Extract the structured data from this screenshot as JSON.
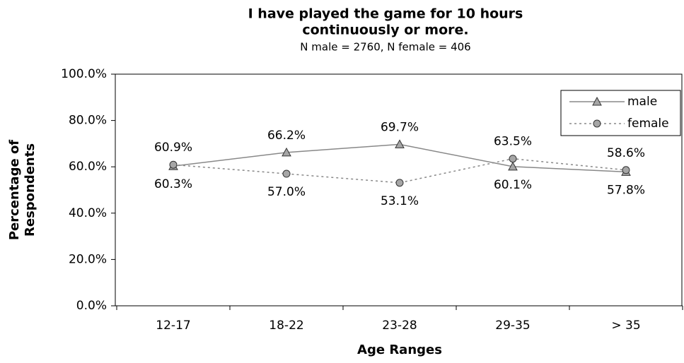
{
  "chart_data": {
    "type": "line",
    "title": [
      "I have played the game for 10 hours",
      "continuously or more."
    ],
    "subtitle": "N male = 2760, N female = 406",
    "xlabel": "Age Ranges",
    "ylabel": [
      "Percentage of",
      "Respondents"
    ],
    "categories": [
      "12-17",
      "18-22",
      "23-28",
      "29-35",
      "> 35"
    ],
    "series": [
      {
        "name": "male",
        "color": "#888888",
        "marker": "triangle",
        "dash": "solid",
        "values": [
          60.3,
          66.2,
          69.7,
          60.1,
          57.8
        ],
        "value_labels": [
          "60.3%",
          "66.2%",
          "69.7%",
          "60.1%",
          "57.8%"
        ]
      },
      {
        "name": "female",
        "color": "#888888",
        "marker": "circle",
        "dash": "dotted",
        "values": [
          60.9,
          57.0,
          53.1,
          63.5,
          58.6
        ],
        "value_labels": [
          "60.9%",
          "57.0%",
          "53.1%",
          "63.5%",
          "58.6%"
        ]
      }
    ],
    "ylim": [
      0,
      100
    ],
    "yticks": [
      {
        "value": 0,
        "label": "0.0%"
      },
      {
        "value": 20,
        "label": "20.0%"
      },
      {
        "value": 40,
        "label": "40.0%"
      },
      {
        "value": 60,
        "label": "60.0%"
      },
      {
        "value": 80,
        "label": "80.0%"
      },
      {
        "value": 100,
        "label": "100.0%"
      }
    ],
    "legend": "upper right",
    "grid": false
  }
}
